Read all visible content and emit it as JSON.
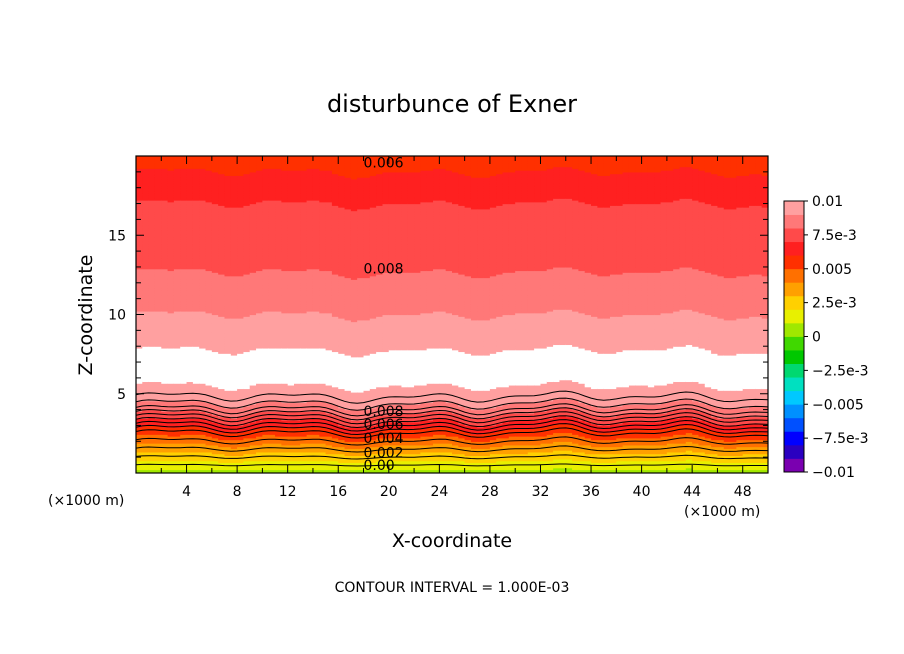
{
  "chart_data": {
    "type": "contour",
    "title": "disturbunce of Exner",
    "xlabel": "X-coordinate",
    "ylabel": "Z-coordinate",
    "x_unit_left": "(×1000 m)",
    "x_unit_right": "(×1000 m)",
    "footer": "CONTOUR INTERVAL = 1.000E-03",
    "xlim": [
      0,
      50
    ],
    "ylim": [
      0,
      20
    ],
    "x_ticks": [
      4,
      8,
      12,
      16,
      20,
      24,
      28,
      32,
      36,
      40,
      44,
      48
    ],
    "y_ticks": [
      5,
      10,
      15
    ],
    "contour_interval": 0.001,
    "colorbar": {
      "range": [
        -0.01,
        0.01
      ],
      "labels": [
        "0.01",
        "7.5e-3",
        "0.005",
        "2.5e-3",
        "0",
        "−2.5e-3",
        "−0.005",
        "−7.5e-3",
        "−0.01"
      ],
      "label_values": [
        0.01,
        0.0075,
        0.005,
        0.0025,
        0,
        -0.0025,
        -0.005,
        -0.0075,
        -0.01
      ],
      "colors": [
        "#7a00b0",
        "#2a00c0",
        "#0000ff",
        "#0050ff",
        "#0090ff",
        "#00c8ff",
        "#00e0c0",
        "#00d870",
        "#00c800",
        "#40d800",
        "#a0e800",
        "#e8f000",
        "#ffd000",
        "#ffa000",
        "#ff7000",
        "#ff3000",
        "#ff2020",
        "#ff4a4a",
        "#ff7878",
        "#ffa0a0"
      ]
    },
    "field_profile": {
      "z": [
        0,
        0.5,
        1.0,
        1.5,
        2.0,
        2.5,
        3.0,
        3.5,
        4.0,
        4.5,
        5.0,
        5.5,
        6.0,
        7.5,
        8.0,
        9.0,
        10.0,
        11.0,
        12.0,
        13.0,
        15.0,
        17.0,
        18.0,
        19.0,
        20.0
      ],
      "value": [
        0.0005,
        0.0015,
        0.0025,
        0.0035,
        0.0045,
        0.0055,
        0.0065,
        0.0075,
        0.0085,
        0.0092,
        0.0097,
        0.01,
        0.0101,
        0.0101,
        0.0099,
        0.0094,
        0.009,
        0.0086,
        0.0082,
        0.0079,
        0.0076,
        0.007,
        0.0065,
        0.006,
        0.0058
      ]
    },
    "contour_labels": [
      {
        "text": "0.006",
        "x": 18,
        "y": 19.6
      },
      {
        "text": "0.008",
        "x": 18,
        "y": 12.9
      },
      {
        "text": "0.008",
        "x": 18,
        "y": 3.9
      },
      {
        "text": "0.006",
        "x": 18,
        "y": 3.1
      },
      {
        "text": "0.004",
        "x": 18,
        "y": 2.2
      },
      {
        "text": "0.002",
        "x": 18,
        "y": 1.3
      },
      {
        "text": "0.00",
        "x": 18,
        "y": 0.5
      }
    ]
  }
}
